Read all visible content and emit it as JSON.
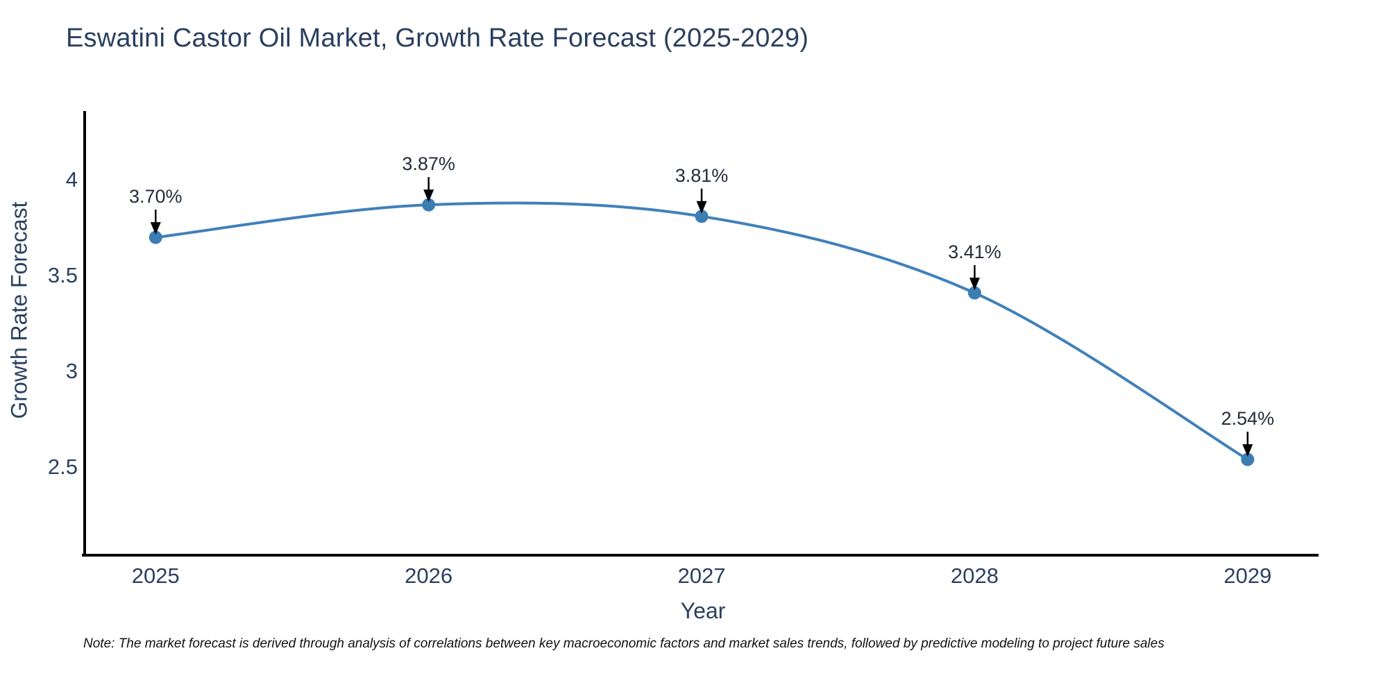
{
  "note": "Note: The market forecast is derived through analysis of correlations between key macroeconomic factors and market sales trends, followed by predictive modeling to project future sales",
  "colors": {
    "line": "#4080BA",
    "marker": "#3C7DB4",
    "axis": "#000000",
    "arrow": "#000000",
    "heading_text": "#2a3f5f",
    "annotation_text": "#242c38"
  },
  "chart_data": {
    "type": "line",
    "title": "Eswatini Castor Oil Market, Growth Rate Forecast (2025-2029)",
    "xlabel": "Year",
    "ylabel": "Growth Rate Forecast",
    "x": [
      2025,
      2026,
      2027,
      2028,
      2029
    ],
    "y": [
      3.7,
      3.87,
      3.81,
      3.41,
      2.54
    ],
    "point_labels": [
      "3.70%",
      "3.87%",
      "3.81%",
      "3.41%",
      "2.54%"
    ],
    "x_tick_labels": [
      "2025",
      "2026",
      "2027",
      "2028",
      "2029"
    ],
    "x_tick_values": [
      2025,
      2026,
      2027,
      2028,
      2029
    ],
    "y_tick_labels": [
      "4",
      "3.5",
      "3",
      "2.5"
    ],
    "y_tick_values": [
      4,
      3.5,
      3,
      2.5
    ],
    "xlim": [
      2024.74,
      2029.26
    ],
    "ylim": [
      2.04,
      4.36
    ],
    "grid": false,
    "legend": "none",
    "smooth": true
  }
}
